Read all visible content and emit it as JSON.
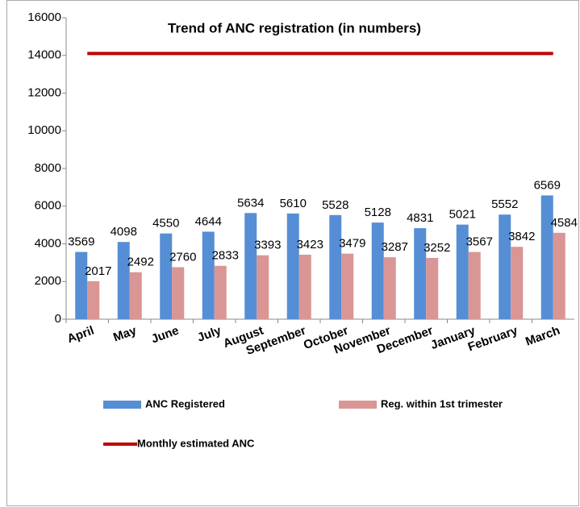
{
  "chart_data": {
    "type": "bar",
    "title": "Trend of ANC registration (in numbers)",
    "categories": [
      "April",
      "May",
      "June",
      "July",
      "August",
      "September",
      "October",
      "November",
      "December",
      "January",
      "February",
      "March"
    ],
    "series": [
      {
        "name": "ANC Registered",
        "color": "#558ed5",
        "values": [
          3569,
          4098,
          4550,
          4644,
          5634,
          5610,
          5528,
          5128,
          4831,
          5021,
          5552,
          6569
        ]
      },
      {
        "name": "Reg. within 1st trimester",
        "color": "#d99694",
        "values": [
          2017,
          2492,
          2760,
          2833,
          3393,
          3423,
          3479,
          3287,
          3252,
          3567,
          3842,
          4584
        ]
      },
      {
        "name": "Monthly estimated ANC",
        "type": "line",
        "color": "#c00000",
        "values": [
          14100,
          14100,
          14100,
          14100,
          14100,
          14100,
          14100,
          14100,
          14100,
          14100,
          14100,
          14100
        ]
      }
    ],
    "ylim": [
      0,
      16000
    ],
    "yticks": [
      0,
      2000,
      4000,
      6000,
      8000,
      10000,
      12000,
      14000,
      16000
    ],
    "grid": false
  }
}
